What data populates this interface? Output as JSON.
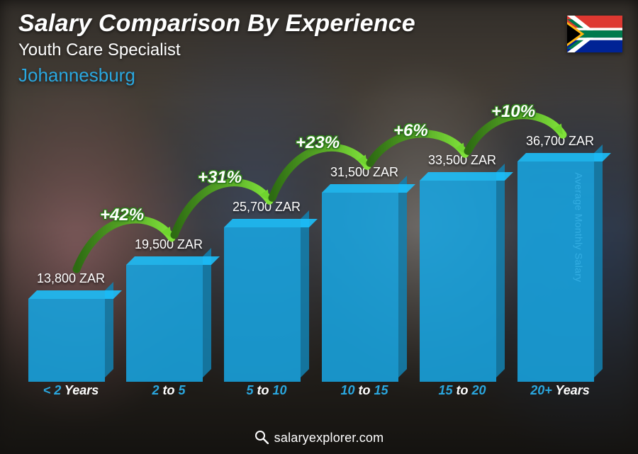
{
  "title": "Salary Comparison By Experience",
  "subtitle": "Youth Care Specialist",
  "location": "Johannesburg",
  "location_color": "#2aa7df",
  "y_axis_label": "Average Monthly Salary",
  "footer": "salaryexplorer.com",
  "flag": {
    "country": "South Africa",
    "colors": {
      "red": "#de3831",
      "blue": "#002395",
      "green": "#007a4d",
      "yellow": "#ffb612",
      "black": "#000000",
      "white": "#ffffff"
    }
  },
  "chart": {
    "type": "bar",
    "bar_color": "#18a4e0",
    "bar_opacity": 0.88,
    "background": "photo-blur",
    "accent_color": "#2aa7df",
    "value_suffix": " ZAR",
    "max_value": 36700,
    "label_fontsize": 18,
    "label_weight": 800,
    "value_fontsize": 18,
    "pct_fontsize": 24,
    "pct_fill": "#ffffff",
    "pct_stroke": "#2e7d1a",
    "arrow_gradient_from": "#2d6b12",
    "arrow_gradient_to": "#7fe23a",
    "bars": [
      {
        "label_pre": "< 2",
        "label_post": " Years",
        "value": 13800,
        "value_text": "13,800 ZAR"
      },
      {
        "label_pre": "2",
        "label_mid": " to ",
        "label_post2": "5",
        "value": 19500,
        "value_text": "19,500 ZAR",
        "pct": "+42%"
      },
      {
        "label_pre": "5",
        "label_mid": " to ",
        "label_post2": "10",
        "value": 25700,
        "value_text": "25,700 ZAR",
        "pct": "+31%"
      },
      {
        "label_pre": "10",
        "label_mid": " to ",
        "label_post2": "15",
        "value": 31500,
        "value_text": "31,500 ZAR",
        "pct": "+23%"
      },
      {
        "label_pre": "15",
        "label_mid": " to ",
        "label_post2": "20",
        "value": 33500,
        "value_text": "33,500 ZAR",
        "pct": "+6%"
      },
      {
        "label_pre": "20+",
        "label_post": " Years",
        "value": 36700,
        "value_text": "36,700 ZAR",
        "pct": "+10%"
      }
    ]
  }
}
